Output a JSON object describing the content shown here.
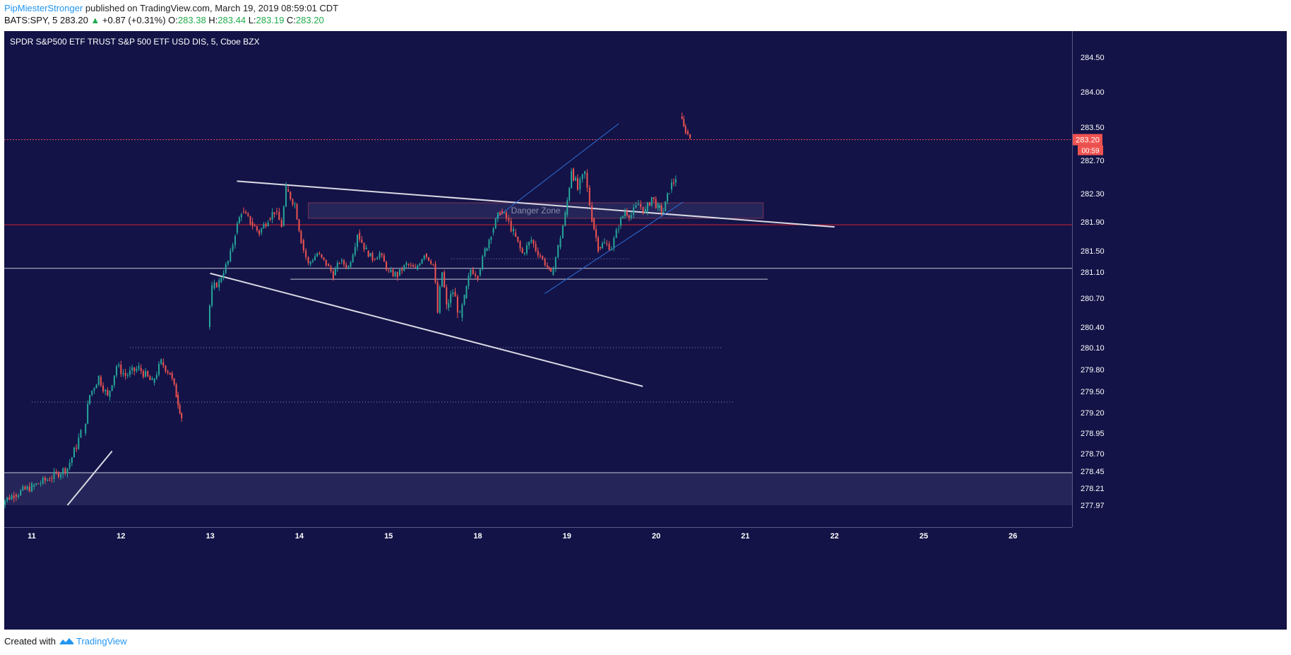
{
  "header": {
    "username": "PipMiesterStronger",
    "published_text": "published on TradingView.com, March 19, 2019 08:59:01 CDT",
    "symbol": "BATS:SPY, 5",
    "last_price": "283.20",
    "change": "+0.87 (+0.31%)",
    "o_label": "O:",
    "o_value": "283.38",
    "h_label": "H:",
    "h_value": "283.44",
    "l_label": "L:",
    "l_value": "283.19",
    "c_label": "C:",
    "c_value": "283.20"
  },
  "footer": {
    "created_with": "Created with",
    "brand": "TradingView"
  },
  "chart_data": {
    "type": "candlestick",
    "title": "SPDR S&P500 ETF TRUST S&P 500 ETF USD DIS, 5, Cboe BZX",
    "y_ticks": [
      284.5,
      284.0,
      283.5,
      282.7,
      282.3,
      281.9,
      281.5,
      281.1,
      280.7,
      280.4,
      280.1,
      279.8,
      279.5,
      279.2,
      278.95,
      278.7,
      278.45,
      278.21,
      277.97
    ],
    "x_ticks": [
      {
        "label": "11",
        "x": 0
      },
      {
        "label": "12",
        "x": 1
      },
      {
        "label": "13",
        "x": 2
      },
      {
        "label": "14",
        "x": 3
      },
      {
        "label": "15",
        "x": 4
      },
      {
        "label": "18",
        "x": 5
      },
      {
        "label": "19",
        "x": 6
      },
      {
        "label": "20",
        "x": 7
      },
      {
        "label": "21",
        "x": 8
      },
      {
        "label": "22",
        "x": 9
      },
      {
        "label": "25",
        "x": 10
      },
      {
        "label": "26",
        "x": 11
      }
    ],
    "last_price_label": "283.20",
    "countdown_label": "00:59",
    "zone_label": "Danger Zone",
    "colors": {
      "background": "#131347",
      "up": "#26a69a",
      "down": "#ef5350",
      "trend": "#d9d9e4",
      "channel": "#2f6fd6",
      "resistance": "#d3232f",
      "last_price": "#ef5350"
    },
    "path_segments": [
      [
        [
          -0.4,
          277.97
        ],
        [
          -0.2,
          278.12
        ],
        [
          0.0,
          278.23
        ],
        [
          0.2,
          278.35
        ],
        [
          0.4,
          278.5
        ],
        [
          0.55,
          278.95
        ]
      ],
      [
        [
          0.58,
          278.95
        ],
        [
          0.65,
          279.45
        ],
        [
          0.75,
          279.7
        ],
        [
          0.85,
          279.42
        ],
        [
          0.95,
          279.85
        ],
        [
          1.05,
          279.72
        ],
        [
          1.2,
          279.82
        ],
        [
          1.35,
          279.62
        ],
        [
          1.45,
          279.9
        ],
        [
          1.55,
          279.75
        ],
        [
          1.62,
          279.45
        ],
        [
          1.68,
          279.15
        ]
      ],
      [
        [
          1.97,
          280.4
        ],
        [
          2.02,
          280.85
        ],
        [
          2.1,
          280.95
        ],
        [
          2.2,
          281.3
        ],
        [
          2.28,
          281.75
        ],
        [
          2.35,
          282.05
        ],
        [
          2.45,
          281.9
        ],
        [
          2.55,
          281.75
        ],
        [
          2.65,
          281.95
        ],
        [
          2.72,
          282.05
        ],
        [
          2.8,
          281.85
        ],
        [
          2.85,
          282.35
        ],
        [
          2.95,
          282.15
        ],
        [
          3.02,
          281.65
        ],
        [
          3.1,
          281.25
        ],
        [
          3.2,
          281.45
        ],
        [
          3.3,
          281.25
        ],
        [
          3.38,
          281.05
        ],
        [
          3.45,
          281.3
        ],
        [
          3.55,
          281.2
        ],
        [
          3.65,
          281.75
        ],
        [
          3.75,
          281.5
        ],
        [
          3.82,
          281.35
        ],
        [
          3.9,
          281.45
        ],
        [
          4.0,
          281.1
        ],
        [
          4.1,
          281.05
        ],
        [
          4.2,
          281.25
        ],
        [
          4.3,
          281.15
        ],
        [
          4.4,
          281.45
        ],
        [
          4.5,
          281.25
        ],
        [
          4.55,
          280.55
        ],
        [
          4.6,
          281.1
        ],
        [
          4.65,
          280.6
        ],
        [
          4.72,
          280.8
        ],
        [
          4.8,
          280.5
        ],
        [
          4.85,
          280.7
        ],
        [
          4.92,
          281.15
        ],
        [
          5.0,
          281.05
        ],
        [
          5.08,
          281.5
        ],
        [
          5.15,
          281.75
        ],
        [
          5.25,
          282.05
        ],
        [
          5.32,
          281.95
        ],
        [
          5.4,
          281.75
        ],
        [
          5.5,
          281.45
        ],
        [
          5.6,
          281.65
        ],
        [
          5.7,
          281.4
        ],
        [
          5.78,
          281.2
        ],
        [
          5.82,
          281.05
        ],
        [
          5.9,
          281.55
        ],
        [
          5.98,
          282.0
        ],
        [
          6.05,
          282.6
        ],
        [
          6.12,
          282.35
        ],
        [
          6.2,
          282.55
        ],
        [
          6.28,
          281.95
        ],
        [
          6.35,
          281.55
        ],
        [
          6.42,
          281.6
        ],
        [
          6.5,
          281.55
        ],
        [
          6.58,
          281.85
        ],
        [
          6.65,
          282.05
        ],
        [
          6.72,
          282.0
        ],
        [
          6.8,
          282.15
        ],
        [
          6.88,
          282.05
        ],
        [
          6.95,
          282.25
        ],
        [
          7.02,
          282.1
        ],
        [
          7.08,
          282.05
        ],
        [
          7.15,
          282.35
        ],
        [
          7.22,
          282.5
        ]
      ],
      [
        [
          7.27,
          283.65
        ],
        [
          7.33,
          283.4
        ],
        [
          7.38,
          283.25
        ]
      ]
    ],
    "trendlines": [
      {
        "x1": 0.9,
        "y1": 278.73,
        "x2": 0.4,
        "y2": 277.97,
        "style": "trend"
      },
      {
        "x1": 2.3,
        "y1": 282.45,
        "x2": 9.0,
        "y2": 281.83,
        "style": "trend"
      },
      {
        "x1": 2.0,
        "y1": 281.08,
        "x2": 6.85,
        "y2": 279.57,
        "style": "trend"
      },
      {
        "x1": 5.2,
        "y1": 281.95,
        "x2": 6.58,
        "y2": 283.55,
        "style": "channel"
      },
      {
        "x1": 5.75,
        "y1": 280.77,
        "x2": 7.3,
        "y2": 282.18,
        "style": "channel"
      }
    ],
    "horizontal_levels": [
      {
        "value": 283.2,
        "style": "last"
      },
      {
        "value": 281.86,
        "style": "resistance"
      },
      {
        "value": 281.17,
        "style": "solid_light"
      },
      {
        "value": 280.99,
        "style": "solid_short",
        "x_from": 2.9,
        "x_to": 8.25
      },
      {
        "value": 281.35,
        "style": "dotted",
        "x_from": 4.7,
        "x_to": 6.7
      },
      {
        "value": 280.1,
        "style": "dotted",
        "x_from": 1.1,
        "x_to": 7.75
      },
      {
        "value": 279.35,
        "style": "dotted",
        "x_from": 0.0,
        "x_to": 7.87
      },
      {
        "value": 278.43,
        "style": "solid_light"
      }
    ],
    "zones": [
      {
        "y_top": 282.17,
        "y_bottom": 281.95,
        "x_from": 3.1,
        "x_to": 8.2,
        "label": "Danger Zone"
      },
      {
        "y_top": 278.43,
        "y_bottom": 277.97,
        "x_from": -0.5,
        "x_to": 11.9,
        "label": ""
      }
    ]
  }
}
